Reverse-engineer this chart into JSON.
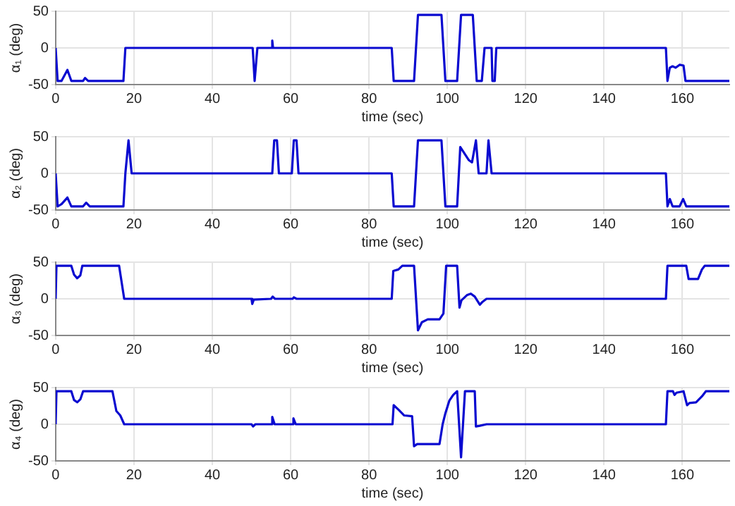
{
  "chart_data": [
    {
      "type": "line",
      "xlabel": "time (sec)",
      "ylabel": "α₁ (deg)",
      "xlim": [
        0,
        172
      ],
      "xticks": [
        0,
        20,
        40,
        60,
        80,
        100,
        120,
        140,
        160
      ],
      "ylim": [
        -50,
        50
      ],
      "yticks": [
        -50,
        0,
        50
      ],
      "grid": true,
      "marker": "none",
      "line_style": "solid",
      "series": [
        {
          "color": "#0a0ad0",
          "x": [
            0,
            0.5,
            1.5,
            3,
            4,
            7,
            7.5,
            8.3,
            17.3,
            17.8,
            50.3,
            50.8,
            51.5,
            55,
            55.3,
            55.5,
            85.8,
            86.3,
            91.5,
            92.5,
            98.5,
            99.5,
            102.5,
            103.5,
            106.5,
            107.5,
            108.8,
            109.5,
            111.3,
            111.5,
            112.1,
            112.5,
            155.8,
            156.2,
            156.8,
            157.5,
            158.3,
            159.3,
            160.3,
            160.8,
            172
          ],
          "values": [
            0,
            -45,
            -45,
            -30,
            -45,
            -45,
            -41,
            -45,
            -45,
            0,
            0,
            -45,
            0,
            0,
            10,
            0,
            0,
            -45,
            -45,
            45,
            45,
            -45,
            -45,
            45,
            45,
            -45,
            -45,
            0,
            0,
            -45,
            -45,
            0,
            0,
            -45,
            -27,
            -25,
            -27,
            -23,
            -24,
            -45,
            -45
          ]
        }
      ]
    },
    {
      "type": "line",
      "xlabel": "time (sec)",
      "ylabel": "α₂ (deg)",
      "xlim": [
        0,
        172
      ],
      "xticks": [
        0,
        20,
        40,
        60,
        80,
        100,
        120,
        140,
        160
      ],
      "ylim": [
        -50,
        50
      ],
      "yticks": [
        -50,
        0,
        50
      ],
      "grid": true,
      "marker": "none",
      "line_style": "solid",
      "series": [
        {
          "color": "#0a0ad0",
          "x": [
            0,
            0.5,
            1.5,
            3,
            4,
            7,
            7.8,
            8.7,
            17.3,
            17.8,
            18.6,
            19.4,
            55.3,
            55.8,
            56.5,
            57,
            60.3,
            60.8,
            61.5,
            62,
            85.8,
            86.3,
            91.5,
            92.5,
            98.5,
            99.5,
            102.5,
            103.3,
            105.5,
            106.3,
            107.3,
            108,
            110,
            110.5,
            111.3,
            155.8,
            156.2,
            156.8,
            157.5,
            159.3,
            160.2,
            161,
            172
          ],
          "values": [
            0,
            -45,
            -42,
            -33,
            -45,
            -45,
            -40,
            -45,
            -45,
            0,
            45,
            0,
            0,
            45,
            45,
            0,
            0,
            45,
            45,
            0,
            0,
            -45,
            -45,
            45,
            45,
            -45,
            -45,
            36,
            18,
            15,
            45,
            0,
            0,
            45,
            0,
            0,
            -45,
            -35,
            -45,
            -45,
            -35,
            -45,
            -45
          ]
        }
      ]
    },
    {
      "type": "line",
      "xlabel": "time (sec)",
      "ylabel": "α₃ (deg)",
      "xlim": [
        0,
        172
      ],
      "xticks": [
        0,
        20,
        40,
        60,
        80,
        100,
        120,
        140,
        160
      ],
      "ylim": [
        -50,
        50
      ],
      "yticks": [
        -50,
        0,
        50
      ],
      "grid": true,
      "marker": "none",
      "line_style": "solid",
      "series": [
        {
          "color": "#0a0ad0",
          "x": [
            0,
            0.2,
            4,
            4.7,
            5.5,
            6.3,
            6.8,
            16.2,
            17.5,
            50,
            50.2,
            50.6,
            55,
            55.4,
            56,
            60.5,
            60.8,
            61.5,
            85.8,
            86.2,
            87.5,
            88.5,
            91.5,
            92.5,
            93.5,
            95,
            98,
            99,
            99.7,
            102.5,
            103.1,
            103.6,
            105,
            106,
            107,
            108.3,
            109,
            110,
            155.8,
            156.2,
            161,
            161.6,
            164,
            165,
            165.7,
            172
          ],
          "values": [
            0,
            45,
            45,
            33,
            28,
            32,
            45,
            45,
            0,
            0,
            -7,
            -1,
            0,
            3,
            0,
            0,
            2,
            0,
            0,
            38,
            40,
            45,
            45,
            -43,
            -32,
            -28,
            -28,
            -20,
            45,
            45,
            -12,
            -2,
            5,
            7,
            3,
            -8,
            -4,
            0,
            0,
            45,
            45,
            27,
            27,
            40,
            45,
            45
          ]
        }
      ]
    },
    {
      "type": "line",
      "xlabel": "time (sec)",
      "ylabel": "α₄ (deg)",
      "xlim": [
        0,
        172
      ],
      "xticks": [
        0,
        20,
        40,
        60,
        80,
        100,
        120,
        140,
        160
      ],
      "ylim": [
        -50,
        50
      ],
      "yticks": [
        -50,
        0,
        50
      ],
      "grid": true,
      "marker": "none",
      "line_style": "solid",
      "series": [
        {
          "color": "#0a0ad0",
          "x": [
            0,
            0.2,
            4,
            4.7,
            5.5,
            6.3,
            7,
            14.5,
            15.5,
            16.5,
            17.5,
            50,
            50.4,
            51,
            55,
            55.3,
            55.9,
            60.4,
            60.7,
            61.3,
            86,
            86.3,
            87.5,
            89,
            91,
            91.5,
            92.3,
            98,
            98.8,
            99.5,
            100.5,
            101.5,
            102.5,
            103.5,
            104.5,
            107,
            107.3,
            108.3,
            110,
            155.8,
            156.2,
            157.6,
            158,
            158.5,
            160.3,
            161.2,
            161.8,
            163.5,
            165,
            166,
            172
          ],
          "values": [
            0,
            45,
            45,
            33,
            30,
            34,
            45,
            45,
            18,
            12,
            0,
            0,
            -3,
            0,
            0,
            10,
            0,
            0,
            8,
            0,
            0,
            26,
            20,
            12,
            11,
            -30,
            -27,
            -27,
            0,
            15,
            32,
            40,
            45,
            -45,
            45,
            45,
            -3,
            -2,
            0,
            0,
            45,
            45,
            40,
            43,
            45,
            26,
            29,
            30,
            38,
            45,
            45
          ]
        }
      ]
    }
  ]
}
